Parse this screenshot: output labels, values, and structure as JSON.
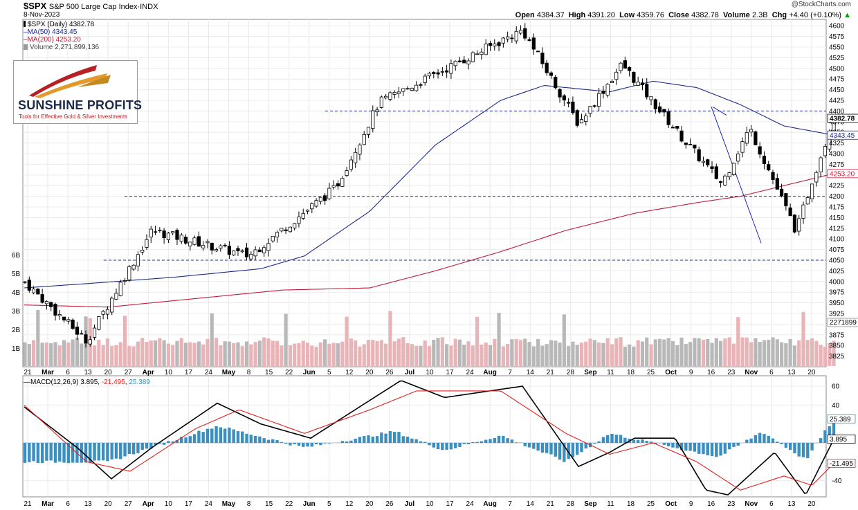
{
  "header": {
    "symbol": "$SPX",
    "name": "S&P 500 Large Cap Index",
    "exchange": "INDX",
    "date": "8-Nov-2023",
    "watermark": "@StockCharts.com",
    "open_label": "Open",
    "open": "4384.37",
    "high_label": "High",
    "high": "4391.20",
    "low_label": "Low",
    "low": "4359.76",
    "close_label": "Close",
    "close": "4382.78",
    "volume_label": "Volume",
    "volume": "2.3B",
    "chg_label": "Chg",
    "chg": "+4.40 (+0.10%)",
    "chg_arrow_color": "#00a000"
  },
  "legend": {
    "price": "$SPX (Daily) 4382.78",
    "ma50": "MA(50) 4343.45",
    "ma200": "MA(200) 4253.20",
    "volume": "Volume 2,271,899,136",
    "macd_name": "MACD(12,26,9)",
    "macd_v1": "3.895",
    "macd_v2": "-21.495",
    "macd_v3": "25.389"
  },
  "logo": {
    "title": "SUNSHINE PROFITS",
    "tagline": "Tools for Effective Gold & Silver Investments"
  },
  "colors": {
    "up_volume": "#e8b4b8",
    "down_volume": "#b8b8b8",
    "ma50": "#1c2a8a",
    "ma200": "#c41a3a",
    "trendline": "#1c2ab0",
    "macd_line": "#000000",
    "signal_line": "#e02020",
    "histogram": "#3a8fc0"
  },
  "chart_data": [
    {
      "type": "candlestick",
      "title": "$SPX S&P 500 Large Cap Index",
      "x_ticks": [
        "21",
        "Mar",
        "6",
        "13",
        "20",
        "27",
        "Apr",
        "10",
        "17",
        "24",
        "May",
        "8",
        "15",
        "22",
        "Jun",
        "5",
        "12",
        "20",
        "26",
        "Jul",
        "10",
        "17",
        "24",
        "Aug",
        "7",
        "14",
        "21",
        "28",
        "Sep",
        "11",
        "18",
        "25",
        "Oct",
        "9",
        "16",
        "23",
        "Nov",
        "6",
        "13",
        "20"
      ],
      "y_ticks": [
        3825,
        3850,
        3875,
        3900,
        3925,
        3950,
        3975,
        4000,
        4025,
        4050,
        4075,
        4100,
        4125,
        4150,
        4175,
        4200,
        4225,
        4250,
        4275,
        4300,
        4325,
        4350,
        4375,
        4400,
        4425,
        4450,
        4475,
        4500,
        4525,
        4550,
        4575,
        4600
      ],
      "ylim": [
        3805,
        4612
      ],
      "volume_ticks": [
        "1B",
        "2B",
        "3B",
        "4B",
        "5B",
        "6B"
      ],
      "horizontal_levels": [
        4400,
        4200,
        4050
      ],
      "last_values": {
        "close": "4382.78",
        "ma50": "4343.45",
        "ma200": "4253.20",
        "volume": "2271899"
      },
      "series": [
        {
          "name": "$SPX",
          "description": "daily candlesticks",
          "key_points": [
            {
              "x": "Feb 21",
              "close": 4000
            },
            {
              "x": "Mar 13",
              "close": 3860
            },
            {
              "x": "Apr 3",
              "close": 4120
            },
            {
              "x": "May 4",
              "close": 4060
            },
            {
              "x": "Jun 1",
              "close": 4220
            },
            {
              "x": "Jun 15",
              "close": 4420
            },
            {
              "x": "Jul 31",
              "close": 4590
            },
            {
              "x": "Aug 18",
              "close": 4370
            },
            {
              "x": "Sep 1",
              "close": 4510
            },
            {
              "x": "Sep 21",
              "close": 4330
            },
            {
              "x": "Oct 3",
              "close": 4230
            },
            {
              "x": "Oct 12",
              "close": 4360
            },
            {
              "x": "Oct 27",
              "close": 4117
            },
            {
              "x": "Nov 1",
              "close": 4237
            },
            {
              "x": "Nov 8",
              "close": 4382.78
            }
          ]
        },
        {
          "name": "MA(50)",
          "key_points": [
            {
              "x": "Feb 21",
              "y": 3985
            },
            {
              "x": "Mar 13",
              "y": 3995
            },
            {
              "x": "Apr 10",
              "y": 4010
            },
            {
              "x": "May 8",
              "y": 4030
            },
            {
              "x": "May 22",
              "y": 4060
            },
            {
              "x": "Jun 12",
              "y": 4165
            },
            {
              "x": "Jul 3",
              "y": 4320
            },
            {
              "x": "Jul 24",
              "y": 4425
            },
            {
              "x": "Aug 7",
              "y": 4460
            },
            {
              "x": "Aug 28",
              "y": 4445
            },
            {
              "x": "Sep 11",
              "y": 4470
            },
            {
              "x": "Sep 25",
              "y": 4455
            },
            {
              "x": "Oct 9",
              "y": 4415
            },
            {
              "x": "Oct 23",
              "y": 4365
            },
            {
              "x": "Nov 8",
              "y": 4343.45
            }
          ]
        },
        {
          "name": "MA(200)",
          "key_points": [
            {
              "x": "Feb 21",
              "y": 3945
            },
            {
              "x": "Mar 20",
              "y": 3940
            },
            {
              "x": "Apr 17",
              "y": 3960
            },
            {
              "x": "May 15",
              "y": 3980
            },
            {
              "x": "Jun 12",
              "y": 3985
            },
            {
              "x": "Jul 3",
              "y": 4025
            },
            {
              "x": "Jul 24",
              "y": 4070
            },
            {
              "x": "Aug 14",
              "y": 4120
            },
            {
              "x": "Sep 5",
              "y": 4160
            },
            {
              "x": "Sep 25",
              "y": 4185
            },
            {
              "x": "Oct 9",
              "y": 4200
            },
            {
              "x": "Oct 23",
              "y": 4225
            },
            {
              "x": "Nov 8",
              "y": 4253.2
            }
          ]
        }
      ]
    },
    {
      "type": "line",
      "title": "MACD(12,26,9)",
      "y_ticks": [
        60,
        40,
        -40
      ],
      "ylim": [
        -70,
        73
      ],
      "last_values": {
        "macd": "3.895",
        "signal": "-21.495",
        "histogram": "25.389"
      },
      "series": [
        {
          "name": "MACD",
          "key_points": [
            {
              "x": "Feb 21",
              "y": 38
            },
            {
              "x": "Mar 10",
              "y": -5
            },
            {
              "x": "Mar 21",
              "y": -38
            },
            {
              "x": "Apr 3",
              "y": -5
            },
            {
              "x": "Apr 24",
              "y": 42
            },
            {
              "x": "May 8",
              "y": 20
            },
            {
              "x": "May 24",
              "y": 5
            },
            {
              "x": "Jun 12",
              "y": 45
            },
            {
              "x": "Jun 22",
              "y": 66
            },
            {
              "x": "Jul 6",
              "y": 48
            },
            {
              "x": "Jul 31",
              "y": 60
            },
            {
              "x": "Aug 18",
              "y": -25
            },
            {
              "x": "Aug 28",
              "y": -10
            },
            {
              "x": "Sep 5",
              "y": 5
            },
            {
              "x": "Sep 18",
              "y": 5
            },
            {
              "x": "Sep 28",
              "y": -50
            },
            {
              "x": "Oct 5",
              "y": -55
            },
            {
              "x": "Oct 20",
              "y": -10
            },
            {
              "x": "Oct 30",
              "y": -55
            },
            {
              "x": "Nov 8",
              "y": 3.895
            }
          ]
        },
        {
          "name": "Signal",
          "key_points": [
            {
              "x": "Feb 21",
              "y": 40
            },
            {
              "x": "Mar 13",
              "y": -20
            },
            {
              "x": "Mar 27",
              "y": -30
            },
            {
              "x": "Apr 17",
              "y": 15
            },
            {
              "x": "May 1",
              "y": 35
            },
            {
              "x": "May 22",
              "y": 10
            },
            {
              "x": "Jun 12",
              "y": 35
            },
            {
              "x": "Jun 27",
              "y": 55
            },
            {
              "x": "Jul 24",
              "y": 55
            },
            {
              "x": "Aug 14",
              "y": 10
            },
            {
              "x": "Aug 28",
              "y": -12
            },
            {
              "x": "Sep 11",
              "y": 0
            },
            {
              "x": "Sep 25",
              "y": -20
            },
            {
              "x": "Oct 9",
              "y": -50
            },
            {
              "x": "Oct 23",
              "y": -35
            },
            {
              "x": "Nov 1",
              "y": -45
            },
            {
              "x": "Nov 8",
              "y": -21.495
            }
          ]
        },
        {
          "name": "Histogram",
          "key_points": [
            {
              "x": "Mar 20",
              "y": -20
            },
            {
              "x": "Apr 24",
              "y": 18
            },
            {
              "x": "May 22",
              "y": -5
            },
            {
              "x": "Jun 20",
              "y": 12
            },
            {
              "x": "Jul 6",
              "y": -8
            },
            {
              "x": "Jul 24",
              "y": 8
            },
            {
              "x": "Aug 14",
              "y": -20
            },
            {
              "x": "Aug 28",
              "y": 10
            },
            {
              "x": "Sep 18",
              "y": -5
            },
            {
              "x": "Oct 2",
              "y": -15
            },
            {
              "x": "Oct 16",
              "y": 12
            },
            {
              "x": "Oct 30",
              "y": -18
            },
            {
              "x": "Nov 8",
              "y": 25.389
            }
          ]
        }
      ]
    }
  ]
}
